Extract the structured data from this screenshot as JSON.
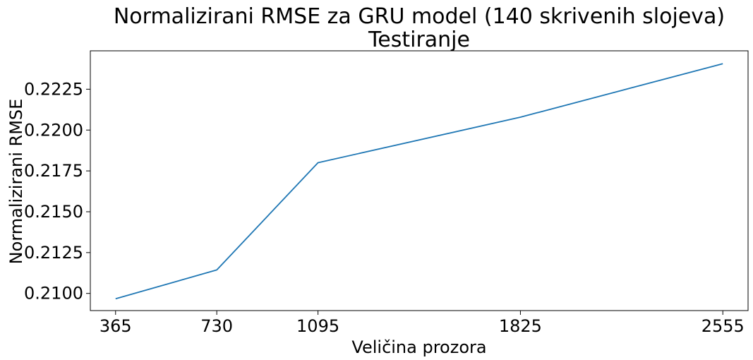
{
  "chart_data": {
    "type": "line",
    "title": "Normalizirani RMSE za GRU model (140 skrivenih slojeva)",
    "subtitle": "Testiranje",
    "xlabel": "Veličina prozora",
    "ylabel": "Normalizirani RMSE",
    "x": [
      365,
      730,
      1095,
      1825,
      2555
    ],
    "xticks": [
      365,
      730,
      1095,
      1825,
      2555
    ],
    "xlim": [
      274,
      2646
    ],
    "ylim": [
      0.20895,
      0.22485
    ],
    "yticks": [
      0.21,
      0.2125,
      0.215,
      0.2175,
      0.22,
      0.2225
    ],
    "ytick_labels": [
      "0.2100",
      "0.2125",
      "0.2150",
      "0.2175",
      "0.2200",
      "0.2225"
    ],
    "grid": false,
    "series": [
      {
        "values": [
          0.20967,
          0.21144,
          0.218,
          0.22079,
          0.22406
        ],
        "color": "#1f77b4"
      }
    ]
  }
}
